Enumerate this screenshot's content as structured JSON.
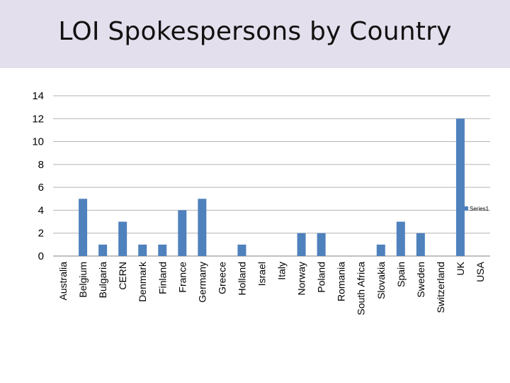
{
  "slide": {
    "title": "LOI Spokespersons by Country"
  },
  "colors": {
    "title_band": "#e4dfec",
    "bar": "#4f81bd",
    "gridline": "#b3b3b3",
    "axis": "#808080"
  },
  "chart_data": {
    "type": "bar",
    "title": "LOI Spokespersons by Country",
    "xlabel": "",
    "ylabel": "",
    "ylim": [
      0,
      14
    ],
    "yticks": [
      0,
      2,
      4,
      6,
      8,
      10,
      12,
      14
    ],
    "grid": true,
    "legend_position": "right",
    "categories": [
      "Australia",
      "Belgium",
      "Bulgaria",
      "CERN",
      "Denmark",
      "Finland",
      "France",
      "Germany",
      "Greece",
      "Holland",
      "Israel",
      "Italy",
      "Norway",
      "Poland",
      "Romania",
      "South Africa",
      "Slovakia",
      "Spain",
      "Sweden",
      "Switzerland",
      "UK",
      "USA"
    ],
    "series": [
      {
        "name": "Series1",
        "values": [
          0,
          5,
          1,
          3,
          1,
          1,
          4,
          5,
          0,
          1,
          0,
          0,
          2,
          2,
          0,
          0,
          1,
          3,
          2,
          0,
          12,
          0
        ]
      }
    ]
  }
}
